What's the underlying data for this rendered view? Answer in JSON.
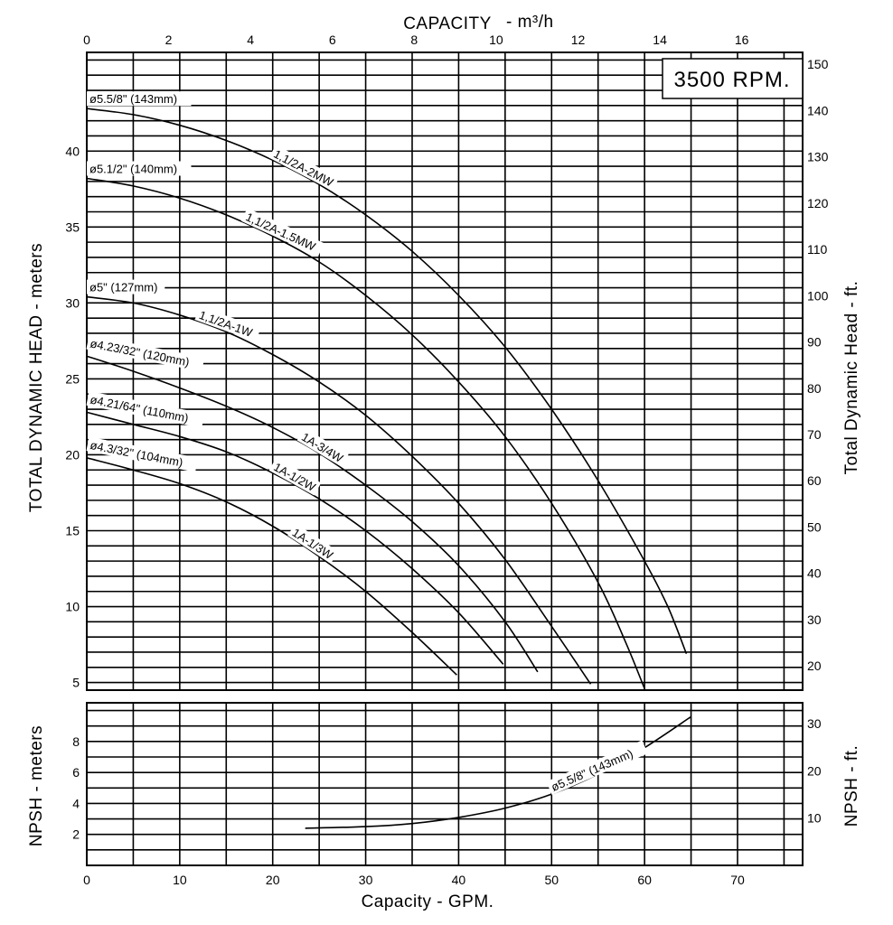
{
  "chart_data": [
    {
      "type": "line",
      "panel": "head",
      "rpm_label": "3500 RPM.",
      "top_axis": {
        "label": "CAPACITY  - m³/h",
        "ticks": [
          0,
          2,
          4,
          6,
          8,
          10,
          12,
          14,
          16
        ]
      },
      "bottom_axis": {
        "label": "Capacity - GPM.",
        "ticks": [
          0,
          10,
          20,
          30,
          40,
          50,
          60,
          70
        ],
        "range": [
          0,
          77
        ]
      },
      "left_axis": {
        "label": "TOTAL DYNAMIC HEAD - meters",
        "ticks": [
          5,
          10,
          15,
          20,
          25,
          30,
          35,
          40
        ],
        "range": [
          4.5,
          46.5
        ]
      },
      "right_axis": {
        "label": "Total Dynamic Head - ft.",
        "ticks": [
          20,
          30,
          40,
          50,
          60,
          70,
          80,
          90,
          100,
          110,
          120,
          130,
          140,
          150
        ]
      },
      "grid": true,
      "series": [
        {
          "name": "1,1/2A-2MW",
          "impeller": "ø5.5/8\" (143mm)",
          "x": [
            0,
            5,
            10,
            15,
            20,
            25,
            30,
            35,
            40,
            45,
            50,
            55,
            60,
            62.5,
            64.5
          ],
          "y": [
            42.8,
            42.4,
            41.7,
            40.7,
            39.4,
            37.8,
            35.8,
            33.4,
            30.5,
            27.1,
            23.0,
            18.3,
            13.0,
            10.0,
            6.9
          ]
        },
        {
          "name": "1,1/2A-1.5MW",
          "impeller": "ø5.1/2\" (140mm)",
          "x": [
            0,
            5,
            10,
            15,
            20,
            25,
            30,
            35,
            40,
            45,
            50,
            55,
            58,
            60
          ],
          "y": [
            38.2,
            37.7,
            36.9,
            35.8,
            34.4,
            32.7,
            30.5,
            27.9,
            24.8,
            21.2,
            16.8,
            11.6,
            7.6,
            4.6
          ]
        },
        {
          "name": "1,1/2A-1W",
          "impeller": "ø5\" (127mm)",
          "x": [
            0,
            5,
            10,
            15,
            20,
            25,
            30,
            35,
            40,
            45,
            50,
            54.2
          ],
          "y": [
            30.4,
            30.0,
            29.2,
            28.1,
            26.6,
            24.8,
            22.6,
            19.9,
            16.8,
            13.1,
            8.7,
            4.9
          ]
        },
        {
          "name": "1A-3/4W",
          "impeller": "ø4.23/32\" (120mm)",
          "x": [
            0,
            5,
            10,
            15,
            20,
            25,
            30,
            35,
            40,
            45,
            48.5
          ],
          "y": [
            26.5,
            25.5,
            24.4,
            23.2,
            21.8,
            20.1,
            18.0,
            15.6,
            12.7,
            9.0,
            5.7
          ]
        },
        {
          "name": "1A-1/2W",
          "impeller": "ø4.21/64\" (110mm)",
          "x": [
            0,
            5,
            10,
            15,
            20,
            25,
            30,
            35,
            40,
            44.8
          ],
          "y": [
            22.8,
            22.0,
            21.2,
            20.2,
            18.8,
            17.1,
            15.0,
            12.5,
            9.6,
            6.2
          ]
        },
        {
          "name": "1A-1/3W",
          "impeller": "ø4.3/32\" (104mm)",
          "x": [
            0,
            5,
            10,
            15,
            20,
            25,
            30,
            35,
            39.8
          ],
          "y": [
            19.8,
            19.0,
            18.1,
            16.9,
            15.3,
            13.3,
            11.0,
            8.3,
            5.5
          ]
        }
      ]
    },
    {
      "type": "line",
      "panel": "npsh",
      "bottom_axis": {
        "label": "Capacity - GPM.",
        "ticks": [
          0,
          10,
          20,
          30,
          40,
          50,
          60,
          70
        ],
        "range": [
          0,
          77
        ]
      },
      "left_axis": {
        "label": "NPSH - meters",
        "ticks": [
          2,
          4,
          6,
          8
        ],
        "range": [
          0,
          10.5
        ]
      },
      "right_axis": {
        "label": "NPSH - ft.",
        "ticks": [
          10,
          20,
          30
        ]
      },
      "grid": true,
      "series": [
        {
          "name": "ø5.5/8\" (143mm)",
          "x": [
            23.5,
            30,
            35,
            40,
            45,
            50,
            55,
            60,
            65
          ],
          "y": [
            2.4,
            2.5,
            2.7,
            3.1,
            3.7,
            4.6,
            5.9,
            7.6,
            9.6
          ]
        }
      ]
    }
  ],
  "labels": {
    "top_axis_prefix": "CAPACITY",
    "top_axis_unit": "- m³/h",
    "bottom_axis": "Capacity - GPM.",
    "left_head": "TOTAL DYNAMIC HEAD - meters",
    "right_head": "Total Dynamic Head - ft.",
    "left_npsh": "NPSH - meters",
    "right_npsh": "NPSH - ft.",
    "rpm": "3500 RPM."
  }
}
